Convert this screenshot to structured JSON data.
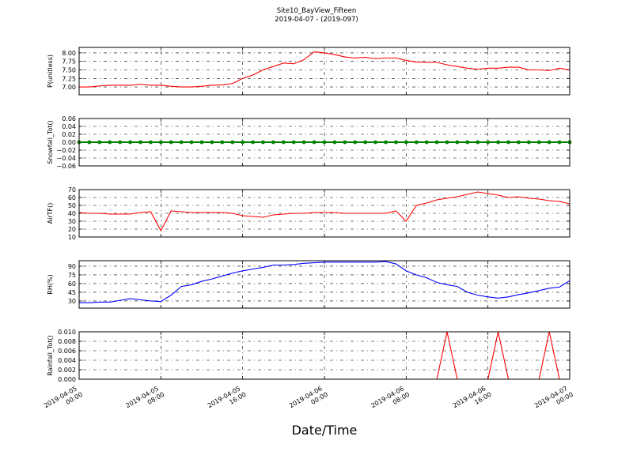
{
  "title": "Site10_BayView_Fifteen",
  "subtitle": "2019-04-07 - (2019-097)",
  "x_axis": {
    "label": "Date/Time",
    "xlim": [
      "2019-04-05 00:00",
      "2019-04-07 00:00"
    ],
    "xticks": [
      "2019-04-05 00:00",
      "2019-04-05 08:00",
      "2019-04-05 16:00",
      "2019-04-06 00:00",
      "2019-04-06 08:00",
      "2019-04-06 16:00",
      "2019-04-07 00:00"
    ],
    "x": [
      "2019-04-05 00:00",
      "2019-04-05 01:00",
      "2019-04-05 02:00",
      "2019-04-05 03:00",
      "2019-04-05 04:00",
      "2019-04-05 05:00",
      "2019-04-05 06:00",
      "2019-04-05 07:00",
      "2019-04-05 08:00",
      "2019-04-05 09:00",
      "2019-04-05 10:00",
      "2019-04-05 11:00",
      "2019-04-05 12:00",
      "2019-04-05 13:00",
      "2019-04-05 14:00",
      "2019-04-05 15:00",
      "2019-04-05 16:00",
      "2019-04-05 17:00",
      "2019-04-05 18:00",
      "2019-04-05 19:00",
      "2019-04-05 20:00",
      "2019-04-05 21:00",
      "2019-04-05 22:00",
      "2019-04-05 23:00",
      "2019-04-06 00:00",
      "2019-04-06 01:00",
      "2019-04-06 02:00",
      "2019-04-06 03:00",
      "2019-04-06 04:00",
      "2019-04-06 05:00",
      "2019-04-06 06:00",
      "2019-04-06 07:00",
      "2019-04-06 08:00",
      "2019-04-06 09:00",
      "2019-04-06 10:00",
      "2019-04-06 11:00",
      "2019-04-06 12:00",
      "2019-04-06 13:00",
      "2019-04-06 14:00",
      "2019-04-06 15:00",
      "2019-04-06 16:00",
      "2019-04-06 17:00",
      "2019-04-06 18:00",
      "2019-04-06 19:00",
      "2019-04-06 20:00",
      "2019-04-06 21:00",
      "2019-04-06 22:00",
      "2019-04-06 23:00",
      "2019-04-07 00:00"
    ]
  },
  "chart_data": [
    {
      "type": "line",
      "ylabel": "P(unitless)",
      "ylim": [
        6.77,
        8.16
      ],
      "grid": true,
      "yticks": [
        {
          "value": 7,
          "label": "7.00"
        },
        {
          "value": 7.25,
          "label": "7.25"
        },
        {
          "value": 7.5,
          "label": "7.50"
        },
        {
          "value": 7.75,
          "label": "7.75"
        },
        {
          "value": 8,
          "label": "8.00"
        }
      ],
      "series": [
        {
          "color": "#ff0000",
          "values": [
            7.0,
            7.0,
            7.03,
            7.05,
            7.05,
            7.05,
            7.08,
            7.05,
            7.05,
            7.02,
            7.0,
            7.0,
            7.02,
            7.05,
            7.06,
            7.1,
            7.25,
            7.35,
            7.5,
            7.6,
            7.7,
            7.68,
            7.8,
            8.03,
            8.0,
            7.95,
            7.88,
            7.85,
            7.87,
            7.83,
            7.85,
            7.85,
            7.78,
            7.73,
            7.72,
            7.72,
            7.65,
            7.6,
            7.55,
            7.52,
            7.55,
            7.55,
            7.58,
            7.58,
            7.5,
            7.5,
            7.48,
            7.55,
            7.5
          ]
        }
      ]
    },
    {
      "type": "line",
      "ylabel": "Snowfall_Tot()",
      "ylim": [
        -0.06,
        0.06
      ],
      "grid": true,
      "markers": true,
      "yticks": [
        {
          "value": -0.06,
          "label": "−0.06"
        },
        {
          "value": -0.04,
          "label": "−0.04"
        },
        {
          "value": -0.02,
          "label": "−0.02"
        },
        {
          "value": 0,
          "label": "0.00"
        },
        {
          "value": 0.02,
          "label": "0.02"
        },
        {
          "value": 0.04,
          "label": "0.04"
        },
        {
          "value": 0.06,
          "label": "0.06"
        }
      ],
      "series": [
        {
          "color": "#008000",
          "values": [
            0,
            0,
            0,
            0,
            0,
            0,
            0,
            0,
            0,
            0,
            0,
            0,
            0,
            0,
            0,
            0,
            0,
            0,
            0,
            0,
            0,
            0,
            0,
            0,
            0,
            0,
            0,
            0,
            0,
            0,
            0,
            0,
            0,
            0,
            0,
            0,
            0,
            0,
            0,
            0,
            0,
            0,
            0,
            0,
            0,
            0,
            0,
            0,
            0
          ]
        }
      ]
    },
    {
      "type": "line",
      "ylabel": "AirTF()",
      "ylim": [
        10,
        70
      ],
      "grid": true,
      "yticks": [
        10,
        20,
        30,
        40,
        50,
        60,
        70
      ],
      "series": [
        {
          "color": "#ff0000",
          "values": [
            41,
            40,
            40,
            39,
            39,
            39,
            41,
            42,
            18,
            43,
            42,
            41,
            41,
            41,
            41,
            40,
            37,
            36,
            35,
            38,
            39,
            40,
            40,
            41,
            41,
            41,
            40,
            40,
            40,
            40,
            40,
            43,
            30,
            50,
            53,
            57,
            59,
            61,
            64,
            67,
            65,
            63,
            60,
            61,
            59,
            58,
            56,
            55,
            52
          ]
        }
      ]
    },
    {
      "type": "line",
      "ylabel": "RH(%)",
      "ylim": [
        17.7,
        99.5
      ],
      "grid": true,
      "yticks": [
        30,
        45,
        60,
        75,
        90
      ],
      "series": [
        {
          "color": "#0000ff",
          "values": [
            27,
            27,
            28,
            28,
            31,
            34,
            32,
            30,
            29,
            40,
            55,
            58,
            64,
            68,
            73,
            78,
            82,
            85,
            88,
            92,
            92,
            93,
            95,
            96,
            97,
            97,
            97,
            97,
            97,
            97,
            98,
            94,
            82,
            75,
            70,
            62,
            58,
            55,
            45,
            40,
            37,
            35,
            37,
            41,
            44,
            48,
            52,
            54,
            65
          ]
        }
      ]
    },
    {
      "type": "line",
      "ylabel": "Rainfall_Tot()",
      "ylim": [
        0,
        0.01
      ],
      "grid": true,
      "yticks": [
        {
          "value": 0,
          "label": "0.000"
        },
        {
          "value": 0.002,
          "label": "0.002"
        },
        {
          "value": 0.004,
          "label": "0.004"
        },
        {
          "value": 0.006,
          "label": "0.006"
        },
        {
          "value": 0.008,
          "label": "0.008"
        },
        {
          "value": 0.01,
          "label": "0.010"
        }
      ],
      "series": [
        {
          "color": "#ff0000",
          "values": [
            0,
            0,
            0,
            0,
            0,
            0,
            0,
            0,
            0,
            0,
            0,
            0,
            0,
            0,
            0,
            0,
            0,
            0,
            0,
            0,
            0,
            0,
            0,
            0,
            0,
            0,
            0,
            0,
            0,
            0,
            0,
            0,
            0,
            0,
            0,
            0,
            0.01,
            0,
            0,
            0,
            0,
            0.01,
            0,
            0,
            0,
            0,
            0.01,
            0,
            0
          ]
        }
      ]
    }
  ]
}
